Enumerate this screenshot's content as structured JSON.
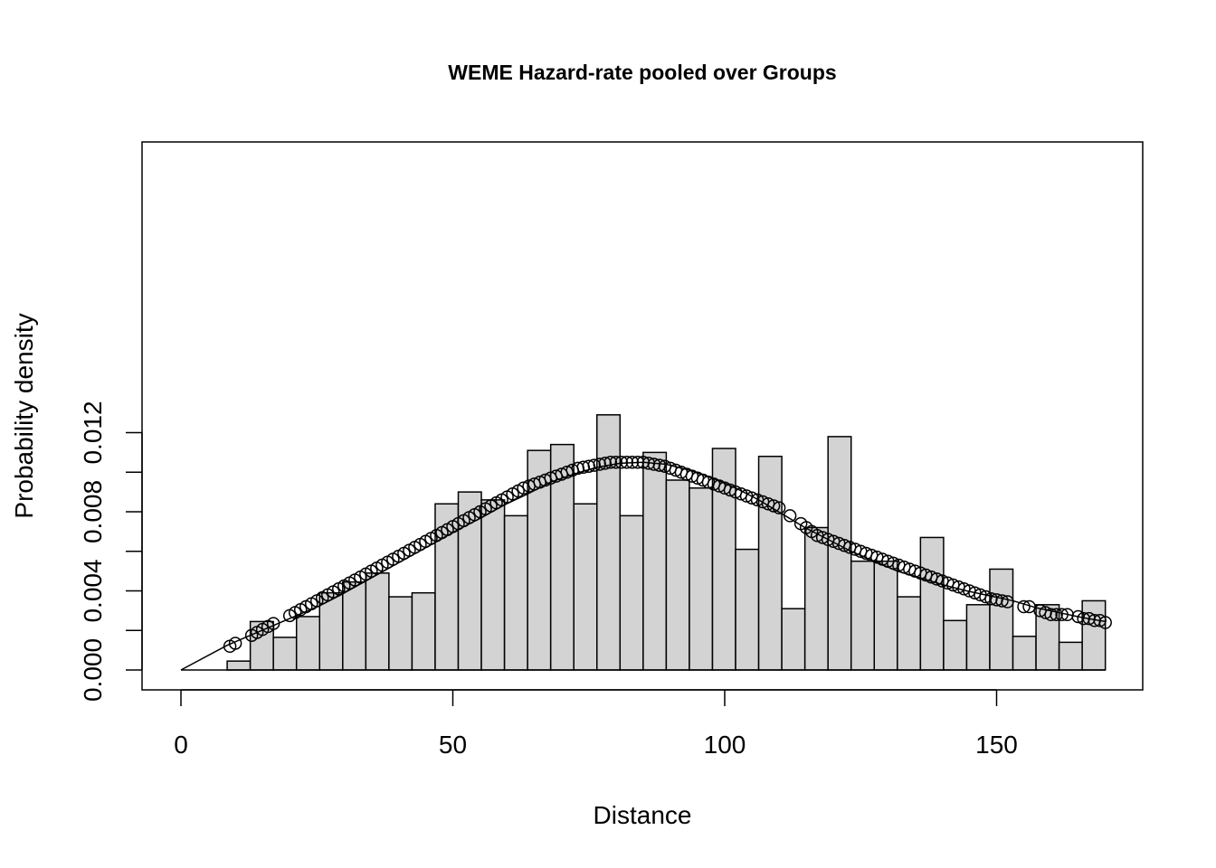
{
  "chart_data": {
    "type": "bar",
    "title": "WEME Hazard-rate  pooled over Groups",
    "xlabel": "Distance",
    "ylabel": "Probability density",
    "xlim": [
      0,
      170
    ],
    "ylim": [
      0,
      0.0128
    ],
    "x_ticks": [
      "0",
      "50",
      "100",
      "150"
    ],
    "y_ticks": [
      "0.000",
      "0.004",
      "0.008",
      "0.012"
    ],
    "x_tick_values": [
      0,
      50,
      100,
      150
    ],
    "y_tick_values": [
      0,
      0.004,
      0.008,
      0.012
    ],
    "grid": false,
    "legend": "none",
    "bar_color": "#d3d3d3",
    "histogram": {
      "bin_width": 4.25,
      "bin_starts": [
        0,
        4.25,
        8.5,
        12.75,
        17,
        21.25,
        25.5,
        29.75,
        34,
        38.25,
        42.5,
        46.75,
        51,
        55.25,
        59.5,
        63.75,
        68,
        72.25,
        76.5,
        80.75,
        85,
        89.25,
        93.5,
        97.75,
        102,
        106.25,
        110.5,
        114.75,
        119,
        123.25,
        127.5,
        131.75,
        136,
        140.25,
        144.5,
        148.75,
        153,
        157.25,
        161.5,
        165.75
      ],
      "densities": [
        0,
        0,
        0.00045,
        0.00245,
        0.00165,
        0.0027,
        0.0039,
        0.00445,
        0.0049,
        0.0037,
        0.0039,
        0.0084,
        0.009,
        0.0086,
        0.0078,
        0.0111,
        0.0114,
        0.0084,
        0.0129,
        0.0078,
        0.011,
        0.0096,
        0.0092,
        0.0112,
        0.0061,
        0.0108,
        0.0031,
        0.0072,
        0.0118,
        0.0055,
        0.0055,
        0.0037,
        0.0067,
        0.0025,
        0.0033,
        0.0051,
        0.0017,
        0.0033,
        0.0014,
        0.0035
      ]
    },
    "fitted_curve": {
      "name": "",
      "x": [
        0,
        8.5,
        12.75,
        17,
        21.25,
        25.5,
        29.75,
        34,
        38.25,
        42.5,
        46.75,
        51,
        55.25,
        59.5,
        63.75,
        68,
        72.25,
        76.5,
        80.75,
        85,
        89.25,
        93.5,
        97.75,
        102,
        106.25,
        110.5,
        114.75,
        119,
        123.25,
        127.5,
        131.75,
        136,
        140.25,
        144.5,
        148.75,
        153,
        157.25,
        161.5,
        165.75,
        170
      ],
      "y": [
        0,
        0.00125,
        0.00175,
        0.00225,
        0.00275,
        0.00325,
        0.00385,
        0.0045,
        0.00515,
        0.0058,
        0.00645,
        0.0071,
        0.0077,
        0.00835,
        0.0089,
        0.0095,
        0.0099,
        0.01025,
        0.01045,
        0.0105,
        0.0104,
        0.0101,
        0.0097,
        0.0092,
        0.0086,
        0.0079,
        0.0072,
        0.0066,
        0.006,
        0.0055,
        0.005,
        0.00465,
        0.0043,
        0.004,
        0.00375,
        0.0035,
        0.00315,
        0.0029,
        0.00265,
        0.00245
      ]
    },
    "observed_points": {
      "x": [
        9,
        10,
        13,
        14,
        15,
        16,
        17,
        20,
        21,
        22,
        23,
        24,
        25,
        26,
        27,
        28,
        29,
        30,
        31,
        32,
        33,
        34,
        35,
        36,
        37,
        38,
        39,
        40,
        41,
        42,
        43,
        44,
        45,
        46,
        47,
        48,
        49,
        50,
        51,
        52,
        53,
        54,
        55,
        56,
        57,
        58,
        59,
        60,
        61,
        62,
        63,
        64,
        65,
        66,
        67,
        68,
        69,
        70,
        71,
        72,
        73,
        74,
        75,
        76,
        77,
        78,
        79,
        80,
        81,
        82,
        83,
        84,
        85,
        86,
        87,
        88,
        89,
        90,
        91,
        92,
        93,
        94,
        95,
        96,
        97,
        98,
        99,
        100,
        101,
        102,
        103,
        104,
        105,
        106,
        107,
        108,
        109,
        110,
        112,
        114,
        115,
        116,
        117,
        118,
        119,
        120,
        121,
        122,
        123,
        124,
        125,
        126,
        127,
        128,
        129,
        130,
        131,
        132,
        133,
        134,
        135,
        136,
        137,
        138,
        139,
        140,
        141,
        142,
        143,
        144,
        145,
        146,
        147,
        148,
        149,
        150,
        151,
        152,
        155,
        156,
        158,
        159,
        160,
        161,
        162,
        163,
        165,
        166,
        167,
        168,
        169,
        170
      ],
      "y": [
        0.0012,
        0.00135,
        0.00175,
        0.0019,
        0.00205,
        0.0022,
        0.00235,
        0.00275,
        0.0029,
        0.00305,
        0.0032,
        0.00335,
        0.0035,
        0.00365,
        0.0038,
        0.00395,
        0.0041,
        0.00425,
        0.0044,
        0.00455,
        0.0047,
        0.00485,
        0.005,
        0.00515,
        0.0053,
        0.00545,
        0.0056,
        0.00575,
        0.0059,
        0.00605,
        0.0062,
        0.00635,
        0.0065,
        0.00665,
        0.0068,
        0.00695,
        0.0071,
        0.00725,
        0.0074,
        0.00755,
        0.0077,
        0.00785,
        0.008,
        0.00815,
        0.0083,
        0.00845,
        0.0086,
        0.00875,
        0.0089,
        0.00905,
        0.0092,
        0.0093,
        0.0094,
        0.0095,
        0.0096,
        0.0097,
        0.0098,
        0.0099,
        0.01,
        0.0101,
        0.0102,
        0.01025,
        0.0103,
        0.01035,
        0.0104,
        0.01045,
        0.0105,
        0.0105,
        0.0105,
        0.0105,
        0.0105,
        0.0105,
        0.0105,
        0.01045,
        0.0104,
        0.01035,
        0.0103,
        0.0102,
        0.0101,
        0.01,
        0.0099,
        0.0098,
        0.0097,
        0.0096,
        0.0095,
        0.0094,
        0.0093,
        0.0092,
        0.0091,
        0.009,
        0.0089,
        0.0088,
        0.0087,
        0.0086,
        0.0085,
        0.0084,
        0.0083,
        0.0082,
        0.0078,
        0.0074,
        0.0072,
        0.007,
        0.0068,
        0.0067,
        0.0066,
        0.0065,
        0.0064,
        0.0063,
        0.0062,
        0.0061,
        0.006,
        0.0059,
        0.0058,
        0.0057,
        0.0056,
        0.0055,
        0.0054,
        0.0053,
        0.0052,
        0.0051,
        0.005,
        0.0049,
        0.0048,
        0.0047,
        0.0046,
        0.0045,
        0.0044,
        0.0043,
        0.0042,
        0.0041,
        0.004,
        0.0039,
        0.0038,
        0.0037,
        0.0036,
        0.00355,
        0.0035,
        0.00345,
        0.0032,
        0.0032,
        0.003,
        0.0029,
        0.0028,
        0.0028,
        0.0028,
        0.0028,
        0.0027,
        0.0026,
        0.0026,
        0.0025,
        0.0025,
        0.0024
      ]
    }
  }
}
